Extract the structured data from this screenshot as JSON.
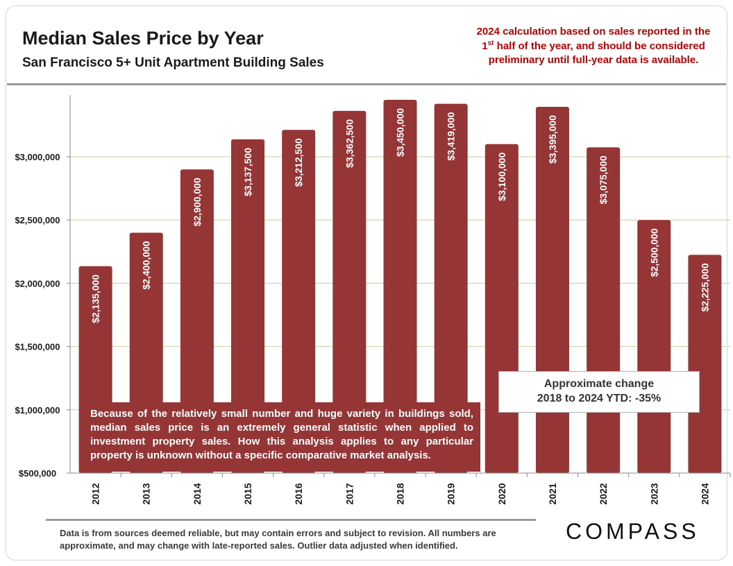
{
  "header": {
    "title": "Median Sales Price by Year",
    "subtitle": "San Francisco 5+ Unit Apartment Building Sales"
  },
  "note": {
    "line1": "2024 calculation based on sales reported in the",
    "line2_num": "1",
    "line2_sup": "st",
    "line2_rest": " half of the year, and should be considered",
    "line3": "preliminary until full-year data is available."
  },
  "colors": {
    "bar": "#963535",
    "grid": "#c9c9a3",
    "note": "#c00000"
  },
  "chart_data": {
    "type": "bar",
    "title": "Median Sales Price by Year",
    "subtitle": "San Francisco 5+ Unit Apartment Building Sales",
    "xlabel": "",
    "ylabel": "",
    "ylim": [
      500000,
      3500000
    ],
    "yticks": [
      500000,
      1000000,
      1500000,
      2000000,
      2500000,
      3000000
    ],
    "ytick_labels": [
      "$500,000",
      "$1,000,000",
      "$1,500,000",
      "$2,000,000",
      "$2,500,000",
      "$3,000,000"
    ],
    "grid": true,
    "categories": [
      "2012",
      "2013",
      "2014",
      "2015",
      "2016",
      "2017",
      "2018",
      "2019",
      "2020",
      "2021",
      "2022",
      "2023",
      "2024"
    ],
    "values": [
      2135000,
      2400000,
      2900000,
      3137500,
      3212500,
      3362500,
      3450000,
      3419000,
      3100000,
      3395000,
      3075000,
      2500000,
      2225000
    ],
    "labels": [
      "$2,135,000",
      "$2,400,000",
      "$2,900,000",
      "$3,137,500",
      "$3,212,500",
      "$3,362,500",
      "$3,450,000",
      "$3,419,000",
      "$3,100,000",
      "$3,395,000",
      "$3,075,000",
      "$2,500,000",
      "$2,225,000"
    ]
  },
  "disclaimer": "Because of the relatively small number and huge variety in buildings sold, median sales price is an extremely general statistic when applied to investment property sales. How this analysis applies to any particular property is unknown without a specific comparative market analysis.",
  "change": {
    "line1": "Approximate change",
    "line2": "2018 to 2024 YTD: -35%"
  },
  "footer": {
    "line1": "Data is from sources deemed reliable, but may contain errors and subject to revision. All numbers are",
    "line2": "approximate, and may change with late-reported sales.  Outlier data adjusted when identified."
  },
  "logo": {
    "text": "COMPASS"
  }
}
